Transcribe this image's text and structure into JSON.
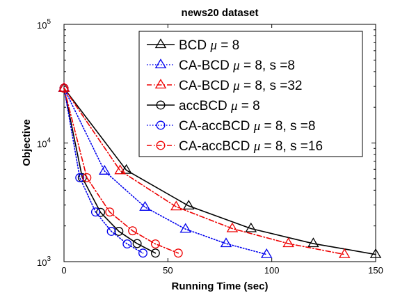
{
  "chart_data": {
    "type": "line",
    "title": "news20 dataset",
    "xlabel": "Running Time (sec)",
    "ylabel": "Objective",
    "xlim": [
      0,
      150
    ],
    "ylim": [
      1000,
      100000
    ],
    "yscale": "log",
    "grid": false,
    "legend_position": "top-right",
    "x_ticks": [
      "0",
      "50",
      "100",
      "150"
    ],
    "y_ticks": [
      {
        "base": "10",
        "exp": "3",
        "value": 1000
      },
      {
        "base": "10",
        "exp": "4",
        "value": 10000
      },
      {
        "base": "10",
        "exp": "5",
        "value": 100000
      }
    ],
    "series": [
      {
        "name": "BCD μ = 8",
        "legend": {
          "pre": "BCD ",
          "mu": "μ",
          "post": " = 8"
        },
        "color": "#000000",
        "marker": "triangle",
        "dash": "solid",
        "x": [
          0,
          30,
          60,
          90,
          120,
          150
        ],
        "y": [
          29000,
          5900,
          2950,
          1900,
          1420,
          1150
        ]
      },
      {
        "name": "CA-BCD μ = 8, s =8",
        "legend": {
          "pre": "CA-BCD ",
          "mu": "μ",
          "post": " = 8, s =8"
        },
        "color": "#0000ee",
        "marker": "triangle",
        "dash": "dotted",
        "x": [
          0,
          19.5,
          39,
          58.5,
          78,
          97.5
        ],
        "y": [
          29000,
          5800,
          2880,
          1880,
          1420,
          1150
        ]
      },
      {
        "name": "CA-BCD μ = 8, s =32",
        "legend": {
          "pre": "CA-BCD ",
          "mu": "μ",
          "post": " = 8, s =32"
        },
        "color": "#ee0000",
        "marker": "triangle",
        "dash": "dashdot",
        "x": [
          0,
          27,
          54,
          81,
          108,
          135
        ],
        "y": [
          29000,
          5850,
          2900,
          1900,
          1420,
          1150
        ]
      },
      {
        "name": "accBCD μ = 8",
        "legend": {
          "pre": "accBCD ",
          "mu": "μ",
          "post": " = 8"
        },
        "color": "#000000",
        "marker": "circle",
        "dash": "solid",
        "x": [
          0,
          8.8,
          17.6,
          26.4,
          35.2,
          44
        ],
        "y": [
          29000,
          5100,
          2600,
          1800,
          1420,
          1180
        ]
      },
      {
        "name": "CA-accBCD μ = 8, s =8",
        "legend": {
          "pre": "CA-accBCD ",
          "mu": "μ",
          "post": " = 8, s =8"
        },
        "color": "#0000ee",
        "marker": "circle",
        "dash": "dotted",
        "x": [
          0,
          7.6,
          15.2,
          22.8,
          30.4,
          38
        ],
        "y": [
          29000,
          5100,
          2620,
          1800,
          1410,
          1180
        ]
      },
      {
        "name": "CA-accBCD μ = 8, s =16",
        "legend": {
          "pre": "CA-accBCD ",
          "mu": "μ",
          "post": " = 8, s =16"
        },
        "color": "#ee0000",
        "marker": "circle",
        "dash": "dashdot",
        "x": [
          0,
          11,
          22,
          33,
          44,
          55
        ],
        "y": [
          29000,
          5100,
          2620,
          1820,
          1410,
          1180
        ]
      }
    ]
  }
}
